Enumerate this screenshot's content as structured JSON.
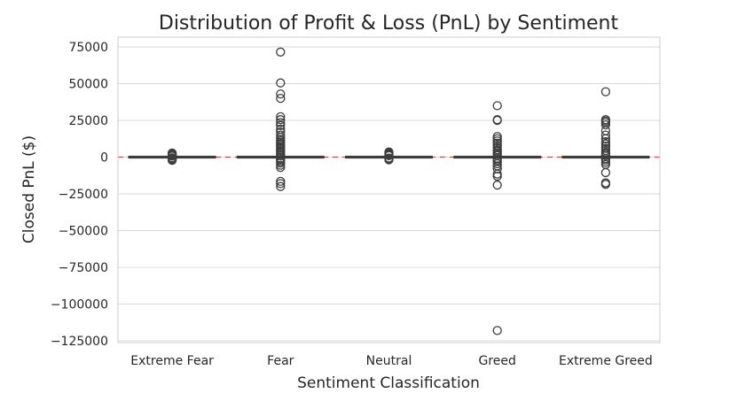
{
  "chart_data": {
    "type": "box",
    "title": "Distribution of Profit & Loss (PnL) by Sentiment",
    "xlabel": "Sentiment Classification",
    "ylabel": "Closed PnL ($)",
    "categories": [
      "Extreme Fear",
      "Fear",
      "Neutral",
      "Greed",
      "Extreme Greed"
    ],
    "ylim": [
      -130000,
      80000
    ],
    "yticks": [
      75000,
      50000,
      25000,
      0,
      -25000,
      -50000,
      -75000,
      -100000,
      -125000
    ],
    "ytick_labels": [
      "75000",
      "50000",
      "25000",
      "0",
      "−25000",
      "−50000",
      "−75000",
      "−100000",
      "−125000"
    ],
    "grid": true,
    "reference_line": {
      "y": 0,
      "style": "dashed",
      "color": "#e8413c"
    },
    "box_color": "#4c72b0",
    "outlier_color": "#3d3d3d",
    "boxes": [
      {
        "category": "Extreme Fear",
        "q1": 0,
        "median": 0,
        "q3": 0,
        "whisker_low": -60,
        "whisker_high": 60,
        "outliers": [
          2800,
          2300,
          1900,
          1500,
          1100,
          700,
          -500,
          -900,
          -1300,
          -1700,
          -2200
        ]
      },
      {
        "category": "Fear",
        "q1": 0,
        "median": 0,
        "q3": 0,
        "whisker_low": -80,
        "whisker_high": 80,
        "outliers": [
          71500,
          50500,
          43000,
          40000,
          27500,
          25500,
          23500,
          21500,
          19000,
          17000,
          15000,
          13500,
          12000,
          11000,
          10000,
          9000,
          8000,
          7000,
          6000,
          5000,
          4000,
          3000,
          2000,
          1000,
          -1000,
          -2000,
          -3000,
          -4000,
          -5500,
          -7000,
          -16500,
          -18000,
          -20000
        ]
      },
      {
        "category": "Neutral",
        "q1": 0,
        "median": 0,
        "q3": 0,
        "whisker_low": -60,
        "whisker_high": 60,
        "outliers": [
          3500,
          2800,
          2200,
          1600,
          1000,
          -600,
          -1200,
          -1800
        ]
      },
      {
        "category": "Greed",
        "q1": 0,
        "median": 0,
        "q3": 0,
        "whisker_low": -80,
        "whisker_high": 80,
        "outliers": [
          35000,
          25500,
          25000,
          14000,
          12500,
          11000,
          9500,
          8000,
          6500,
          5000,
          4000,
          3000,
          2000,
          1000,
          -1000,
          -2000,
          -3000,
          -4500,
          -6000,
          -8000,
          -11500,
          -13000,
          -19000,
          -118000
        ]
      },
      {
        "category": "Extreme Greed",
        "q1": 0,
        "median": 0,
        "q3": 0,
        "whisker_low": -80,
        "whisker_high": 80,
        "outliers": [
          44500,
          25500,
          24500,
          23500,
          22000,
          18000,
          15000,
          12500,
          10500,
          9000,
          7500,
          6000,
          4500,
          3000,
          2000,
          1000,
          -1000,
          -2000,
          -3500,
          -5000,
          -10500,
          -17500,
          -18500
        ]
      }
    ]
  }
}
